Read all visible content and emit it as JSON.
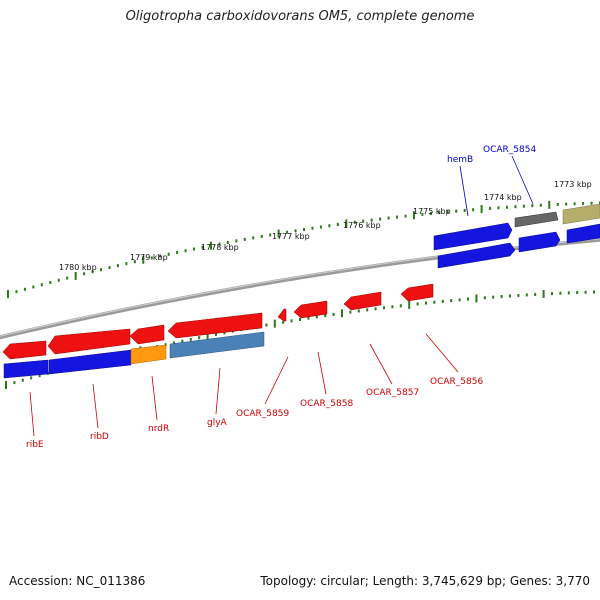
{
  "title": "Oligotropha carboxidovorans OM5, complete genome",
  "footer": {
    "accession": "Accession: NC_011386",
    "topology": "Topology: circular; Length: 3,745,629 bp; Genes: 3,770"
  },
  "colors": {
    "backbone": "#8c8c8c",
    "tick": "#2a7a1a",
    "red_gene": "#ee1111",
    "blue_gene": "#1515e0",
    "orange_gene": "#ff9a10",
    "steel_gene": "#4a82b8",
    "gray_gene": "#666666",
    "olive_gene": "#b5ae6a",
    "red_label": "#cc0000",
    "blue_label": "#0000cc"
  },
  "scale_labels": [
    "1780 kbp",
    "1779 kbp",
    "1778 kbp",
    "1777 kbp",
    "1776 kbp",
    "1775 kbp",
    "1774 kbp",
    "1773 kbp"
  ],
  "gene_labels": {
    "top": [
      "hemB",
      "OCAR_5854"
    ],
    "bottom": [
      "ribE",
      "ribD",
      "nrdR",
      "glyA",
      "OCAR_5859",
      "OCAR_5858",
      "OCAR_5857",
      "OCAR_5856"
    ]
  }
}
